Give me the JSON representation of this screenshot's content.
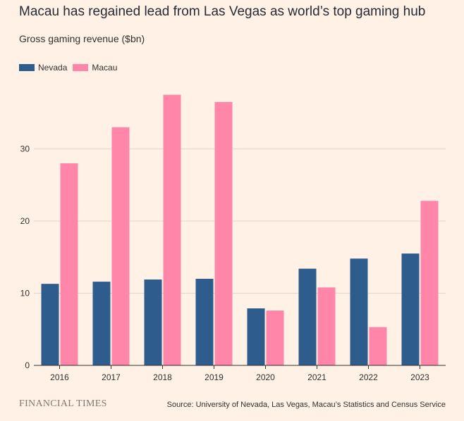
{
  "header": {
    "title": "Macau has regained lead from Las Vegas as world’s top gaming hub",
    "subtitle": "Gross gaming revenue ($bn)"
  },
  "footer": {
    "brand": "FINANCIAL TIMES",
    "source": "Source: University of Nevada, Las Vegas, Macau’s Statistics and Census Service"
  },
  "colors": {
    "nevada": "#2e5c8d",
    "macau": "#ff85a9",
    "grid": "#e0d6cc",
    "axis": "#33302e"
  },
  "chart_data": {
    "type": "bar",
    "title": "Macau has regained lead from Las Vegas as world’s top gaming hub",
    "ylabel": "Gross gaming revenue ($bn)",
    "xlabel": "",
    "categories": [
      "2016",
      "2017",
      "2018",
      "2019",
      "2020",
      "2021",
      "2022",
      "2023"
    ],
    "series": [
      {
        "name": "Nevada",
        "values": [
          11.3,
          11.6,
          11.9,
          12.0,
          7.9,
          13.4,
          14.8,
          15.5
        ]
      },
      {
        "name": "Macau",
        "values": [
          28.0,
          33.0,
          37.5,
          36.5,
          7.6,
          10.8,
          5.3,
          22.8
        ]
      }
    ],
    "ylim": [
      0,
      38
    ],
    "yticks": [
      0,
      10,
      20,
      30
    ],
    "ytick_labels": [
      "0",
      "10",
      "20",
      "30"
    ],
    "grid": true,
    "legend": "top-left"
  }
}
